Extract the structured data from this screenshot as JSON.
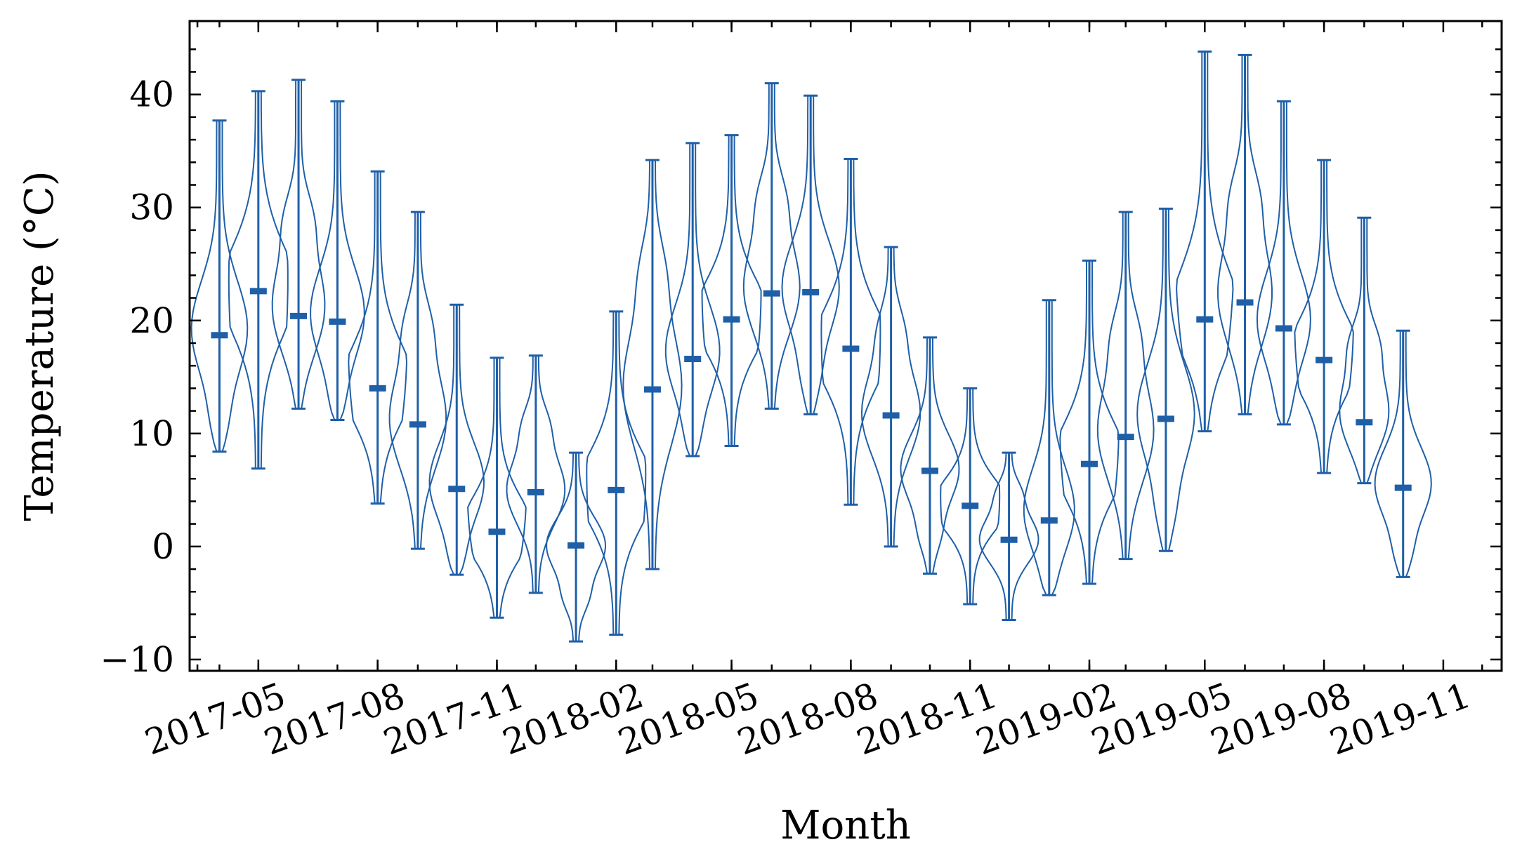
{
  "chart_data": {
    "type": "violin",
    "xlabel": "Month",
    "ylabel": "Temperature (°C)",
    "ylim": [
      -11,
      46.5
    ],
    "yticks": [
      -10,
      0,
      10,
      20,
      30,
      40
    ],
    "ytick_labels": [
      "−10",
      "0",
      "10",
      "20",
      "30",
      "40"
    ],
    "xlim": [
      "2017-03-09",
      "2019-12-16"
    ],
    "xticks": [
      "2017-05-01",
      "2017-08-01",
      "2017-11-01",
      "2018-02-01",
      "2018-05-01",
      "2018-08-01",
      "2018-11-01",
      "2019-02-01",
      "2019-05-01",
      "2019-08-01",
      "2019-11-01"
    ],
    "xtick_labels": [
      "2017-05",
      "2017-08",
      "2017-11",
      "2018-02",
      "2018-05",
      "2018-08",
      "2018-11",
      "2019-02",
      "2019-05",
      "2019-08",
      "2019-11"
    ],
    "grid": false,
    "color": "#1f5fa8",
    "series": [
      {
        "date": "2017-04-01",
        "min": 8.4,
        "max": 37.7,
        "median": 18.7
      },
      {
        "date": "2017-05-01",
        "min": 6.9,
        "max": 40.3,
        "median": 22.6
      },
      {
        "date": "2017-06-01",
        "min": 12.2,
        "max": 41.3,
        "median": 20.4
      },
      {
        "date": "2017-07-01",
        "min": 11.2,
        "max": 39.4,
        "median": 19.9
      },
      {
        "date": "2017-08-01",
        "min": 3.8,
        "max": 33.2,
        "median": 14.0
      },
      {
        "date": "2017-09-01",
        "min": -0.2,
        "max": 29.6,
        "median": 10.8
      },
      {
        "date": "2017-10-01",
        "min": -2.5,
        "max": 21.4,
        "median": 5.1
      },
      {
        "date": "2017-11-01",
        "min": -6.3,
        "max": 16.7,
        "median": 1.3
      },
      {
        "date": "2017-12-01",
        "min": -4.1,
        "max": 16.9,
        "median": 4.8
      },
      {
        "date": "2018-01-01",
        "min": -8.4,
        "max": 8.3,
        "median": 0.1
      },
      {
        "date": "2018-02-01",
        "min": -7.8,
        "max": 20.8,
        "median": 5.0
      },
      {
        "date": "2018-03-01",
        "min": -2.0,
        "max": 34.2,
        "median": 13.9
      },
      {
        "date": "2018-04-01",
        "min": 8.0,
        "max": 35.7,
        "median": 16.6
      },
      {
        "date": "2018-05-01",
        "min": 8.9,
        "max": 36.4,
        "median": 20.1
      },
      {
        "date": "2018-06-01",
        "min": 12.2,
        "max": 41.0,
        "median": 22.4
      },
      {
        "date": "2018-07-01",
        "min": 11.7,
        "max": 39.9,
        "median": 22.5
      },
      {
        "date": "2018-08-01",
        "min": 3.7,
        "max": 34.3,
        "median": 17.5
      },
      {
        "date": "2018-09-01",
        "min": 0.0,
        "max": 26.5,
        "median": 11.6
      },
      {
        "date": "2018-10-01",
        "min": -2.4,
        "max": 18.5,
        "median": 6.7
      },
      {
        "date": "2018-11-01",
        "min": -5.1,
        "max": 14.0,
        "median": 3.6
      },
      {
        "date": "2018-12-01",
        "min": -6.5,
        "max": 8.3,
        "median": 0.6
      },
      {
        "date": "2019-01-01",
        "min": -4.3,
        "max": 21.8,
        "median": 2.3
      },
      {
        "date": "2019-02-01",
        "min": -3.3,
        "max": 25.3,
        "median": 7.3
      },
      {
        "date": "2019-03-01",
        "min": -1.1,
        "max": 29.6,
        "median": 9.7
      },
      {
        "date": "2019-04-01",
        "min": -0.4,
        "max": 29.9,
        "median": 11.3
      },
      {
        "date": "2019-05-01",
        "min": 10.2,
        "max": 43.8,
        "median": 20.1
      },
      {
        "date": "2019-06-01",
        "min": 11.7,
        "max": 43.5,
        "median": 21.6
      },
      {
        "date": "2019-07-01",
        "min": 10.8,
        "max": 39.4,
        "median": 19.3
      },
      {
        "date": "2019-08-01",
        "min": 6.5,
        "max": 34.2,
        "median": 16.5
      },
      {
        "date": "2019-09-01",
        "min": 5.6,
        "max": 29.1,
        "median": 11.0
      },
      {
        "date": "2019-10-01",
        "min": -2.7,
        "max": 19.1,
        "median": 5.2
      }
    ]
  }
}
